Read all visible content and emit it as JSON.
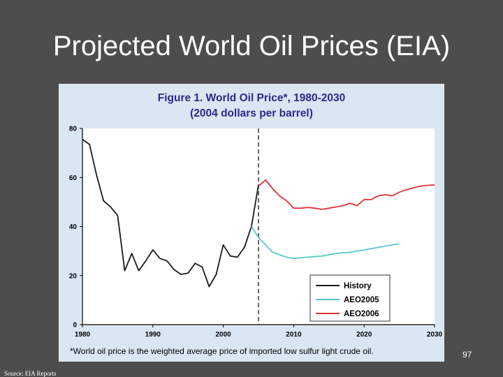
{
  "slide": {
    "title": "Projected World Oil Prices (EIA)",
    "slide_number": "97",
    "source_note": "Source: EIA Reports"
  },
  "chart_data": {
    "type": "line",
    "title": "Figure 1.  World Oil Price*, 1980-2030",
    "subtitle": "(2004 dollars per barrel)",
    "footnote": "*World oil price is the weighted average price of imported low sulfur light crude oil.",
    "xlim": [
      1980,
      2030
    ],
    "ylim": [
      0,
      80
    ],
    "x_ticks": [
      1980,
      1990,
      2000,
      2010,
      2020,
      2030
    ],
    "y_ticks": [
      0,
      20,
      40,
      60,
      80
    ],
    "vertical_divider_x": 2005,
    "legend_position": "bottom-right",
    "grid": false,
    "series": [
      {
        "name": "History",
        "color": "#1a1a1a",
        "x": [
          1980,
          1981,
          1982,
          1983,
          1984,
          1985,
          1986,
          1987,
          1988,
          1989,
          1990,
          1991,
          1992,
          1993,
          1994,
          1995,
          1996,
          1997,
          1998,
          1999,
          2000,
          2001,
          2002,
          2003,
          2004,
          2005
        ],
        "y": [
          75.5,
          73.5,
          61,
          50.5,
          48,
          44.5,
          22,
          29,
          22,
          26,
          30.5,
          27,
          26,
          22.5,
          20.5,
          21,
          25,
          23.5,
          15.5,
          20.5,
          32.5,
          28,
          27.5,
          31.5,
          40,
          57
        ]
      },
      {
        "name": "AEO2005",
        "color": "#58c8c8",
        "x": [
          2004,
          2005,
          2006,
          2007,
          2008,
          2009,
          2010,
          2012,
          2014,
          2016,
          2018,
          2020,
          2022,
          2024,
          2025
        ],
        "y": [
          40,
          35.5,
          32.5,
          29.5,
          28.5,
          27.5,
          27,
          27.5,
          28,
          29,
          29.5,
          30.5,
          31.5,
          32.5,
          33
        ]
      },
      {
        "name": "AEO2006",
        "color": "#e0303a",
        "x": [
          2005,
          2006,
          2007,
          2008,
          2009,
          2010,
          2011,
          2012,
          2013,
          2014,
          2015,
          2016,
          2017,
          2018,
          2019,
          2020,
          2021,
          2022,
          2023,
          2024,
          2025,
          2026,
          2027,
          2028,
          2029,
          2030
        ],
        "y": [
          56.5,
          59,
          55.5,
          52.5,
          50.5,
          47.5,
          47.5,
          47.8,
          47.5,
          47,
          47.5,
          48,
          48.5,
          49.5,
          48.5,
          51,
          51,
          52.5,
          53,
          52.5,
          54,
          55,
          55.8,
          56.5,
          56.8,
          57
        ]
      }
    ]
  }
}
